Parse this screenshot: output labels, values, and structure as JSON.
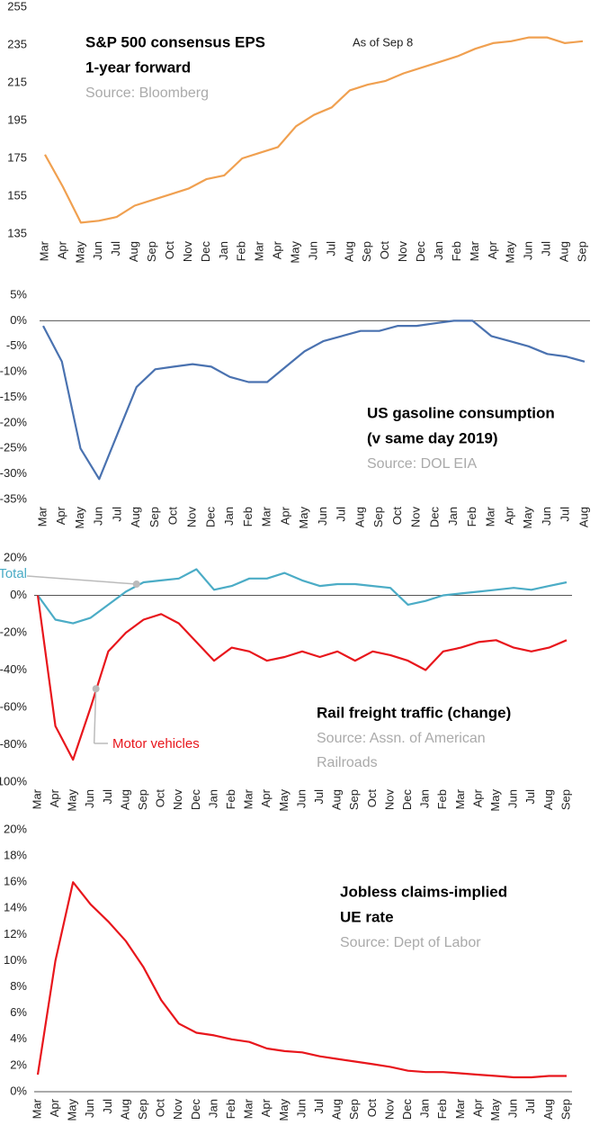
{
  "chart_data": [
    {
      "type": "line",
      "title": "S&P 500 consensus EPS",
      "subtitle": "1-year forward",
      "source": [
        "Source: Bloomberg"
      ],
      "annotation": "As of Sep 8",
      "categories": [
        "Mar",
        "Apr",
        "May",
        "Jun",
        "Jul",
        "Aug",
        "Sep",
        "Oct",
        "Nov",
        "Dec",
        "Jan",
        "Feb",
        "Mar",
        "Apr",
        "May",
        "Jun",
        "Jul",
        "Aug",
        "Sep",
        "Oct",
        "Nov",
        "Dec",
        "Jan",
        "Feb",
        "Mar",
        "Apr",
        "May",
        "Jun",
        "Jul",
        "Aug",
        "Sep"
      ],
      "values": [
        177,
        160,
        141,
        142,
        144,
        150,
        153,
        156,
        159,
        164,
        166,
        175,
        178,
        181,
        192,
        198,
        202,
        211,
        214,
        216,
        220,
        223,
        226,
        229,
        233,
        236,
        237,
        239,
        239,
        236,
        237
      ],
      "color": "#f0a050",
      "ylim": [
        135,
        255
      ],
      "yticks": [
        135,
        155,
        175,
        195,
        215,
        235,
        255
      ]
    },
    {
      "type": "line",
      "title": "US gasoline consumption",
      "subtitle": "(v same day 2019)",
      "source": [
        "Source: DOL EIA"
      ],
      "categories": [
        "Mar",
        "Apr",
        "May",
        "Jun",
        "Jul",
        "Aug",
        "Sep",
        "Oct",
        "Nov",
        "Dec",
        "Jan",
        "Feb",
        "Mar",
        "Apr",
        "May",
        "Jun",
        "Jul",
        "Aug",
        "Sep",
        "Oct",
        "Nov",
        "Dec",
        "Jan",
        "Feb",
        "Mar",
        "Apr",
        "May",
        "Jun",
        "Jul",
        "Aug"
      ],
      "values": [
        -1,
        -8,
        -25,
        -31,
        -22,
        -13,
        -9.5,
        -9,
        -8.5,
        -9,
        -11,
        -12,
        -12,
        -9,
        -6,
        -4,
        -3,
        -2,
        -2,
        -1,
        -1,
        -0.5,
        0,
        0,
        -3,
        -4,
        -5,
        -6.5,
        -7,
        -8
      ],
      "color": "#4a72b0",
      "ylim": [
        -35,
        5
      ],
      "yticks": [
        {
          "value": -35,
          "label": "-35%"
        },
        {
          "value": -30,
          "label": "-30%"
        },
        {
          "value": -25,
          "label": "-25%"
        },
        {
          "value": -20,
          "label": "-20%"
        },
        {
          "value": -15,
          "label": "-15%"
        },
        {
          "value": -10,
          "label": "-10%"
        },
        {
          "value": -5,
          "label": "-5%"
        },
        {
          "value": 0,
          "label": "0%"
        },
        {
          "value": 5,
          "label": "5%"
        }
      ]
    },
    {
      "type": "line",
      "title": "Rail freight traffic (change)",
      "source": [
        "Source: Assn. of American",
        "Railroads"
      ],
      "categories": [
        "Mar",
        "Apr",
        "May",
        "Jun",
        "Jul",
        "Aug",
        "Sep",
        "Oct",
        "Nov",
        "Dec",
        "Jan",
        "Feb",
        "Mar",
        "Apr",
        "May",
        "Jun",
        "Jul",
        "Aug",
        "Sep",
        "Oct",
        "Nov",
        "Dec",
        "Jan",
        "Feb",
        "Mar",
        "Apr",
        "May",
        "Jun",
        "Jul",
        "Aug",
        "Sep"
      ],
      "series": [
        {
          "name": "Total",
          "color": "#4bacc6",
          "values": [
            0,
            -13,
            -15,
            -12,
            -5,
            2,
            7,
            8,
            9,
            14,
            3,
            5,
            9,
            9,
            12,
            8,
            5,
            6,
            6,
            5,
            4,
            -5,
            -3,
            0,
            1,
            2,
            3,
            4,
            3,
            5,
            7
          ]
        },
        {
          "name": "Motor vehicles",
          "color": "#e8161c",
          "values": [
            0,
            -70,
            -88,
            -60,
            -30,
            -20,
            -13,
            -10,
            -15,
            -25,
            -35,
            -28,
            -30,
            -35,
            -33,
            -30,
            -33,
            -30,
            -35,
            -30,
            -32,
            -35,
            -40,
            -30,
            -28,
            -25,
            -24,
            -28,
            -30,
            -28,
            -24
          ]
        }
      ],
      "ylim": [
        -100,
        20
      ],
      "yticks": [
        {
          "value": -100,
          "label": "-100%"
        },
        {
          "value": -80,
          "label": "-80%"
        },
        {
          "value": -60,
          "label": "-60%"
        },
        {
          "value": -40,
          "label": "-40%"
        },
        {
          "value": -20,
          "label": "-20%"
        },
        {
          "value": 0,
          "label": "0%"
        },
        {
          "value": 20,
          "label": "20%"
        }
      ]
    },
    {
      "type": "line",
      "title": "Jobless claims-implied",
      "subtitle": "UE rate",
      "source": [
        "Source: Dept of Labor"
      ],
      "categories": [
        "Mar",
        "Apr",
        "May",
        "Jun",
        "Jul",
        "Aug",
        "Sep",
        "Oct",
        "Nov",
        "Dec",
        "Jan",
        "Feb",
        "Mar",
        "Apr",
        "May",
        "Jun",
        "Jul",
        "Aug",
        "Sep",
        "Oct",
        "Nov",
        "Dec",
        "Jan",
        "Feb",
        "Mar",
        "Apr",
        "May",
        "Jun",
        "Jul",
        "Aug",
        "Sep"
      ],
      "values": [
        1.3,
        10,
        16,
        14.3,
        13,
        11.5,
        9.5,
        7,
        5.2,
        4.5,
        4.3,
        4,
        3.8,
        3.3,
        3.1,
        3,
        2.7,
        2.5,
        2.3,
        2.1,
        1.9,
        1.6,
        1.5,
        1.5,
        1.4,
        1.3,
        1.2,
        1.1,
        1.1,
        1.2,
        1.2
      ],
      "color": "#e8161c",
      "ylim": [
        0,
        20
      ],
      "yticks": [
        {
          "value": 0,
          "label": "0%"
        },
        {
          "value": 2,
          "label": "2%"
        },
        {
          "value": 4,
          "label": "4%"
        },
        {
          "value": 6,
          "label": "6%"
        },
        {
          "value": 8,
          "label": "8%"
        },
        {
          "value": 10,
          "label": "10%"
        },
        {
          "value": 12,
          "label": "12%"
        },
        {
          "value": 14,
          "label": "14%"
        },
        {
          "value": 16,
          "label": "16%"
        },
        {
          "value": 18,
          "label": "18%"
        },
        {
          "value": 20,
          "label": "20%"
        }
      ]
    }
  ]
}
